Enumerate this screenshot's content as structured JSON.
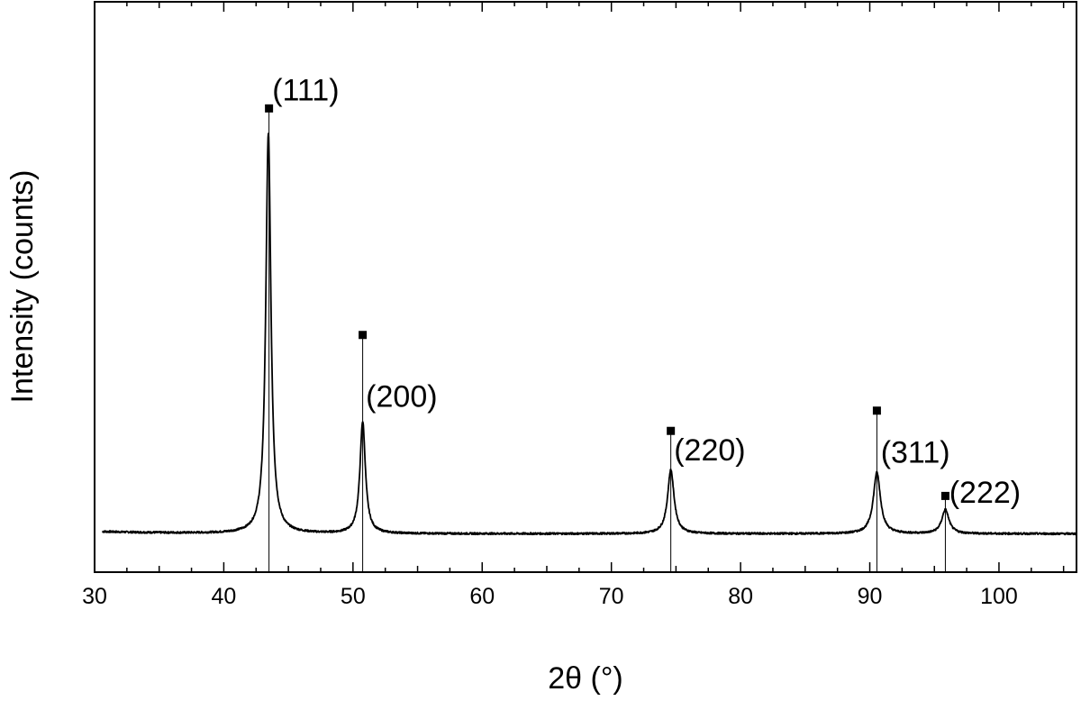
{
  "chart_data": {
    "type": "line",
    "title": "",
    "xlabel": "2θ (°)",
    "ylabel": "Intensity (counts)",
    "xlim": [
      30,
      106
    ],
    "ylim": [
      -7,
      100
    ],
    "x_ticks": [
      30,
      40,
      50,
      60,
      70,
      80,
      90,
      100
    ],
    "x_tick_labels": [
      "30",
      "40",
      "50",
      "60",
      "70",
      "80",
      "90",
      "100"
    ],
    "y_tick_labels_shown": false,
    "grid": false,
    "legend": "none",
    "series": [
      {
        "style": "line",
        "color": "#000000",
        "baseline": 0.2,
        "peaks": [
          {
            "x": 43.45,
            "height": 75,
            "width": 0.3
          },
          {
            "x": 50.75,
            "height": 21,
            "width": 0.32
          },
          {
            "x": 74.6,
            "height": 12,
            "width": 0.38
          },
          {
            "x": 90.55,
            "height": 11.5,
            "width": 0.42
          },
          {
            "x": 95.85,
            "height": 4.5,
            "width": 0.42
          }
        ]
      }
    ],
    "reference_lines": [
      {
        "x": 43.5,
        "y": 80
      },
      {
        "x": 50.75,
        "y": 37.5
      },
      {
        "x": 74.6,
        "y": 19.5
      },
      {
        "x": 90.55,
        "y": 23.3
      },
      {
        "x": 95.85,
        "y": 7.3
      }
    ],
    "annotations": [
      {
        "text": "(111)",
        "x": 43.75,
        "y": 81.5
      },
      {
        "text": "(200)",
        "x": 51.0,
        "y": 24
      },
      {
        "text": "(220)",
        "x": 74.85,
        "y": 14
      },
      {
        "text": "(311)",
        "x": 90.85,
        "y": 13.5
      },
      {
        "text": "(222)",
        "x": 96.15,
        "y": 6
      }
    ]
  }
}
